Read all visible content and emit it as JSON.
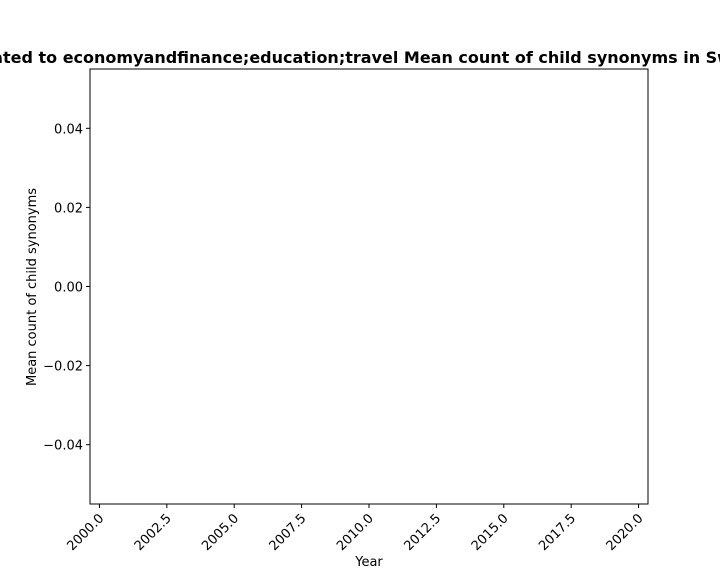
{
  "chart_data": {
    "type": "line",
    "title": "Related to economyandfinance;education;travel Mean count of child synonyms in Swiss",
    "xlabel": "Year",
    "ylabel": "Mean count of child synonyms",
    "xlim": [
      1999.65,
      2020.35
    ],
    "ylim": [
      -0.055,
      0.055
    ],
    "x_ticks": [
      2000.0,
      2002.5,
      2005.0,
      2007.5,
      2010.0,
      2012.5,
      2015.0,
      2017.5,
      2020.0
    ],
    "x_tick_labels": [
      "2000.0",
      "2002.5",
      "2005.0",
      "2007.5",
      "2010.0",
      "2012.5",
      "2015.0",
      "2017.5",
      "2020.0"
    ],
    "y_ticks": [
      0.04,
      0.02,
      0.0,
      -0.02,
      -0.04
    ],
    "y_tick_labels": [
      "0.04",
      "0.02",
      "0.00",
      "−0.02",
      "−0.04"
    ],
    "series": [],
    "grid": false,
    "legend": "none"
  }
}
